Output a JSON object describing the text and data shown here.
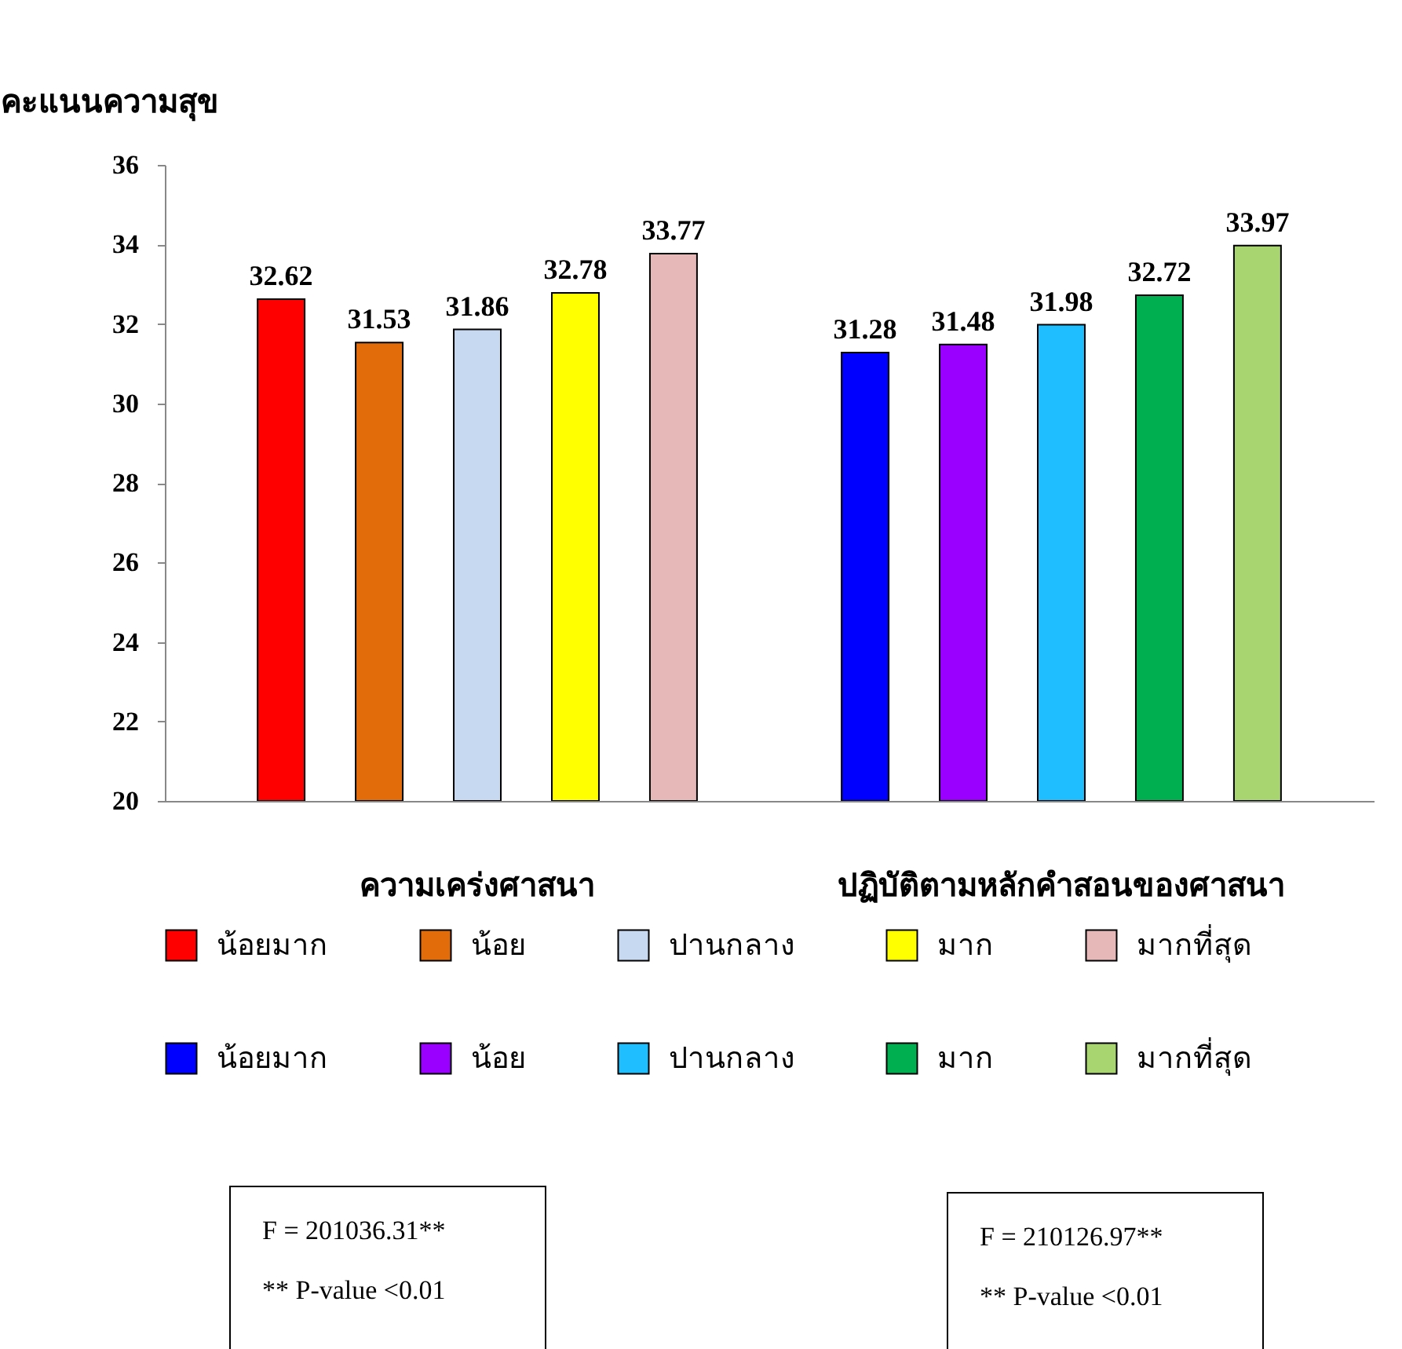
{
  "chart_data": {
    "type": "bar",
    "ylabel": "คะแนนความสุข",
    "categories": [
      "ความเคร่งศาสนา",
      "ปฏิบัติตามหลักคำสอนของศาสนา"
    ],
    "series": [
      {
        "name": "น้อยมาก",
        "color": "#ff0000",
        "values": [
          32.62,
          null
        ]
      },
      {
        "name": "น้อย",
        "color": "#e36c0a",
        "values": [
          31.53,
          null
        ]
      },
      {
        "name": "ปานกลาง",
        "color": "#c6d9f1",
        "values": [
          31.86,
          null
        ]
      },
      {
        "name": "มาก",
        "color": "#ffff00",
        "values": [
          32.78,
          null
        ]
      },
      {
        "name": "มากที่สุด",
        "color": "#e6b9b8",
        "values": [
          33.77,
          null
        ]
      },
      {
        "name": "น้อยมาก",
        "color": "#0000ff",
        "values": [
          null,
          31.28
        ]
      },
      {
        "name": "น้อย",
        "color": "#9900ff",
        "values": [
          null,
          31.48
        ]
      },
      {
        "name": "ปานกลาง",
        "color": "#1fbfff",
        "values": [
          null,
          31.98
        ]
      },
      {
        "name": "มาก",
        "color": "#00b050",
        "values": [
          null,
          32.72
        ]
      },
      {
        "name": "มากที่สุด",
        "color": "#a9d571",
        "values": [
          null,
          33.97
        ]
      }
    ],
    "ylim": [
      20,
      36
    ],
    "yticks": [
      20,
      22,
      24,
      26,
      28,
      30,
      32,
      34,
      36
    ],
    "grid": false,
    "data_labels": true,
    "legend": "bottom",
    "annotations": [
      "F = 201036.31**",
      "** P-value <0.01",
      "F = 210126.97**",
      "** P-value <0.01"
    ]
  }
}
